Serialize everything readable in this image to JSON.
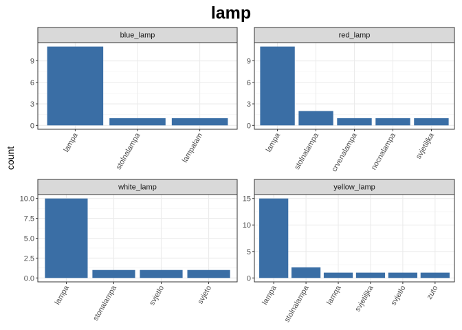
{
  "chart_data": {
    "type": "bar",
    "title": "lamp",
    "ylabel": "count",
    "xlabel": "",
    "grid": true,
    "bar_color": "#3a6ea5",
    "strip_color": "#d9d9d9",
    "panels": [
      {
        "name": "blue_lamp",
        "categories": [
          "lampa",
          "stolnalampa",
          "lampalam"
        ],
        "values": [
          11,
          1,
          1
        ],
        "ylim": [
          0,
          11
        ],
        "yticks": [
          0,
          3,
          6,
          9
        ],
        "ytick_labels": [
          "0",
          "3",
          "6",
          "9"
        ]
      },
      {
        "name": "red_lamp",
        "categories": [
          "lampa",
          "stolnalampa",
          "crvenalampa",
          "nocnalampa",
          "svjetiljka"
        ],
        "values": [
          11,
          2,
          1,
          1,
          1
        ],
        "ylim": [
          0,
          11
        ],
        "yticks": [
          0,
          3,
          6,
          9
        ],
        "ytick_labels": [
          "0",
          "3",
          "6",
          "9"
        ]
      },
      {
        "name": "white_lamp",
        "categories": [
          "lampa",
          "stonalampa",
          "svjetlo",
          "svjeto"
        ],
        "values": [
          10,
          1,
          1,
          1
        ],
        "ylim": [
          0,
          10
        ],
        "yticks": [
          0,
          2.5,
          5,
          7.5,
          10
        ],
        "ytick_labels": [
          "0.0",
          "2.5",
          "5.0",
          "7.5",
          "10.0"
        ]
      },
      {
        "name": "yellow_lamp",
        "categories": [
          "lampa",
          "stolnalampa",
          "lamqa",
          "svjetiljka",
          "svjetlo",
          "zuto"
        ],
        "values": [
          15,
          2,
          1,
          1,
          1,
          1
        ],
        "ylim": [
          0,
          15
        ],
        "yticks": [
          0,
          5,
          10,
          15
        ],
        "ytick_labels": [
          "0",
          "5",
          "10",
          "15"
        ]
      }
    ]
  }
}
